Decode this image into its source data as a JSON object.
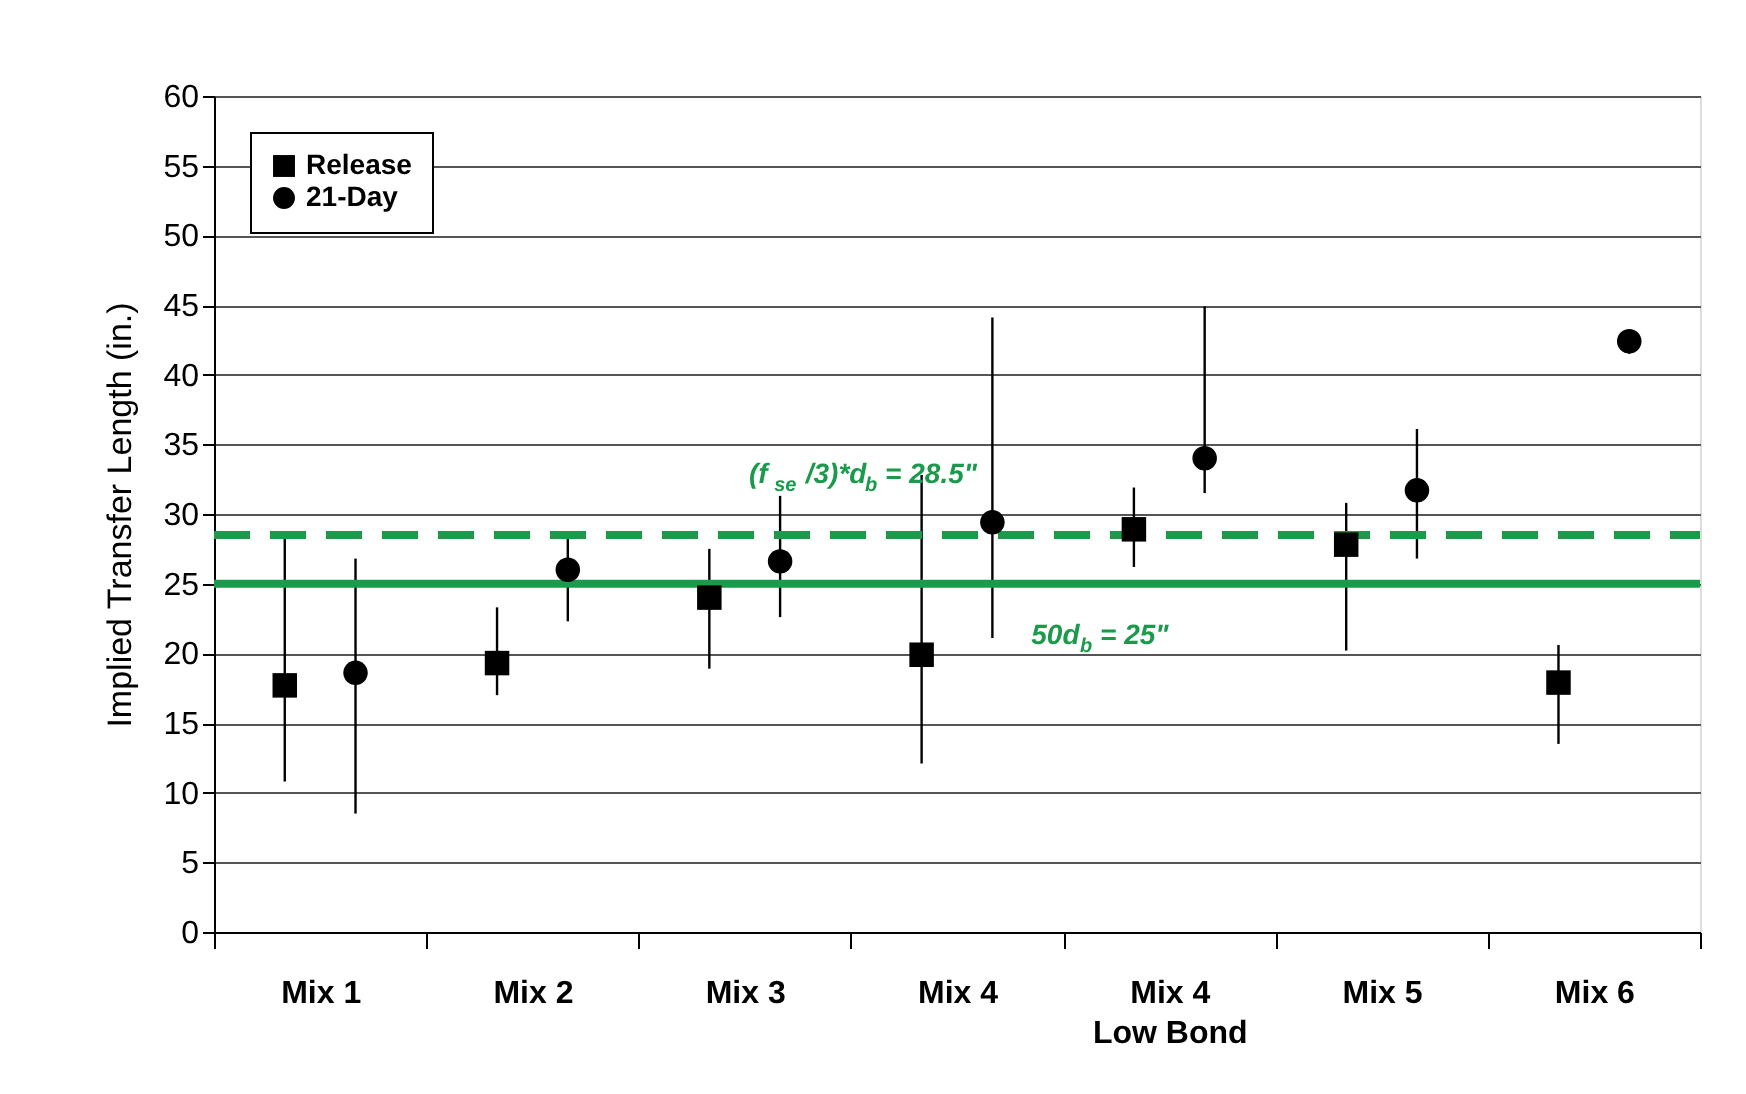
{
  "chart_data": {
    "type": "scatter",
    "ylabel": "Implied Transfer Length (in.)",
    "categories": [
      "Mix 1",
      "Mix 2",
      "Mix 3",
      "Mix 4",
      "Mix 4\nLow Bond",
      "Mix 5",
      "Mix 6"
    ],
    "series": [
      {
        "name": "Release",
        "color": "#000000",
        "marker": "square",
        "values": [
          17.7,
          19.3,
          24.0,
          19.9,
          28.9,
          27.8,
          17.9
        ],
        "errors": [
          [
            10.8,
            28.3
          ],
          [
            17.0,
            23.3
          ],
          [
            18.9,
            27.5
          ],
          [
            12.1,
            32.8
          ],
          [
            26.2,
            31.9
          ],
          [
            20.2,
            30.8
          ],
          [
            13.5,
            20.6
          ]
        ]
      },
      {
        "name": "21-Day",
        "color": "#000000",
        "marker": "circle",
        "values": [
          18.6,
          26.0,
          26.6,
          29.4,
          34.0,
          31.7,
          42.4
        ],
        "errors": [
          [
            8.5,
            26.8
          ],
          [
            22.3,
            28.7
          ],
          [
            22.6,
            31.3
          ],
          [
            21.1,
            44.1
          ],
          [
            31.5,
            44.9
          ],
          [
            26.8,
            36.1
          ],
          [
            41.5,
            43.2
          ]
        ]
      }
    ],
    "ylim": [
      0,
      60
    ],
    "yticks": [
      0,
      5,
      10,
      15,
      20,
      25,
      30,
      35,
      40,
      45,
      50,
      55,
      60
    ],
    "grid": "y",
    "legend": "top left",
    "ref_lines": [
      {
        "axis": "y",
        "value": 28.5,
        "label": "(f$_{se}$ /3)*d$_{b}$ = 28.5\"",
        "color": "#1a9b4b",
        "line_style": "dashed"
      },
      {
        "axis": "y",
        "value": 25,
        "label": "50d$_{b}$ = 25\"",
        "color": "#1a9b4b",
        "line_style": "solid"
      }
    ]
  }
}
